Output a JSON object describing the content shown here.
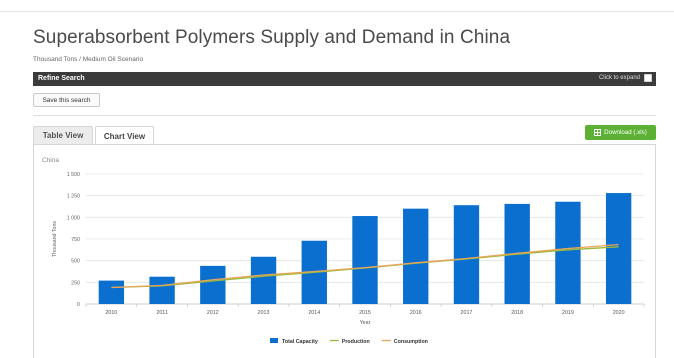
{
  "page": {
    "title": "Superabsorbent Polymers Supply and Demand in China",
    "subtitle": "Thousand Tons / Medium Oil Scenario"
  },
  "refine": {
    "label": "Refine Search",
    "expand_label": "Click to expand"
  },
  "save_button": "Save this search",
  "tabs": [
    {
      "label": "Table View",
      "active": false
    },
    {
      "label": "Chart View",
      "active": true
    }
  ],
  "download_button": "Download (.xls)",
  "colors": {
    "bar": "#0a6fcf",
    "production": "#9ab93a",
    "consumption": "#e8a55a",
    "download": "#5cb135"
  },
  "chart_data": {
    "type": "bar",
    "title": "China",
    "xlabel": "Year",
    "ylabel": "Thousand Tons",
    "ylim": [
      0,
      1500
    ],
    "yticks": [
      "0",
      "250",
      "500",
      "750",
      "1 000",
      "1 250",
      "1 500"
    ],
    "ytick_values": [
      0,
      250,
      500,
      750,
      1000,
      1250,
      1500
    ],
    "grid": true,
    "legend_position": "bottom",
    "categories": [
      "2010",
      "2011",
      "2012",
      "2013",
      "2014",
      "2015",
      "2016",
      "2017",
      "2018",
      "2019",
      "2020"
    ],
    "series": [
      {
        "name": "Total Capacity",
        "kind": "bar",
        "values": [
          270,
          315,
          440,
          545,
          730,
          1015,
          1100,
          1140,
          1155,
          1180,
          1280
        ]
      },
      {
        "name": "Production",
        "kind": "line",
        "values": [
          190,
          210,
          265,
          320,
          365,
          415,
          470,
          520,
          575,
          625,
          660
        ]
      },
      {
        "name": "Consumption",
        "kind": "line",
        "values": [
          190,
          215,
          280,
          335,
          375,
          420,
          475,
          525,
          585,
          640,
          685
        ]
      }
    ]
  }
}
